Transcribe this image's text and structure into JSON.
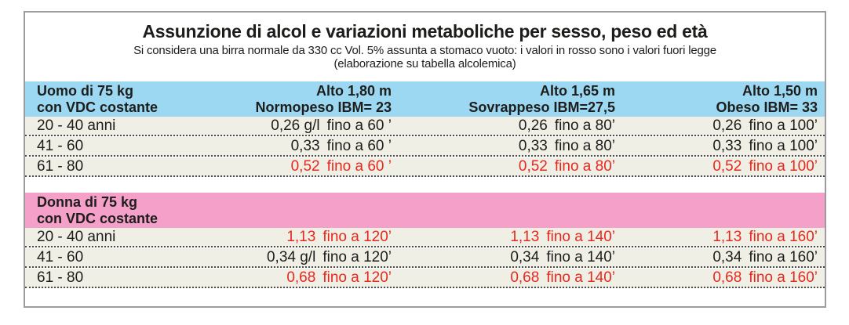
{
  "colors": {
    "blue_header": "#9dd8f3",
    "pink_header": "#f5a0c9",
    "row_bg": "#f0efe6",
    "red_text": "#e8281c",
    "border": "#9c9c9c",
    "text": "#1d1d1b"
  },
  "chart_data": {
    "type": "table",
    "title": "Assunzione di alcol e variazioni metaboliche per sesso, peso ed età",
    "subtitle": "Si considera una birra normale da 330 cc Vol. 5% assunta a stomaco vuoto: i valori in rosso sono i valori fuori legge",
    "note": "(elaborazione su tabella alcolemica)",
    "columns": [
      {
        "line1": "Alto 1,80 m",
        "line2": "Normopeso IBM= 23"
      },
      {
        "line1": "Alto 1,65 m",
        "line2": "Sovrappeso IBM=27,5"
      },
      {
        "line1": "Alto 1,50 m",
        "line2": "Obeso IBM= 33"
      }
    ],
    "sections": [
      {
        "label_line1": "Uomo di 75 kg",
        "label_line2": "con VDC costante",
        "theme": "blue",
        "rows": [
          {
            "age": "20 - 40 anni",
            "values": [
              {
                "num": "0,26 g/l",
                "time": "fino a 60 ’",
                "color": "black"
              },
              {
                "num": "0,26",
                "time": "fino a 80’",
                "color": "black"
              },
              {
                "num": "0,26",
                "time": "fino a 100’",
                "color": "black"
              }
            ]
          },
          {
            "age": "41 - 60",
            "values": [
              {
                "num": "0,33",
                "time": "fino a 60 ’",
                "color": "black"
              },
              {
                "num": "0,33",
                "time": "fino a 80’",
                "color": "black"
              },
              {
                "num": "0,33",
                "time": "fino a 100’",
                "color": "black"
              }
            ]
          },
          {
            "age": "61 - 80",
            "values": [
              {
                "num": "0,52",
                "time": "fino a 60 ’",
                "color": "red"
              },
              {
                "num": "0,52",
                "time": "fino a 80’",
                "color": "red"
              },
              {
                "num": "0,52",
                "time": "fino a 100’",
                "color": "red"
              }
            ]
          }
        ]
      },
      {
        "label_line1": "Donna di 75 kg",
        "label_line2": "con VDC costante",
        "theme": "pink",
        "rows": [
          {
            "age": "20 - 40 anni",
            "values": [
              {
                "num": "1,13",
                "time": "fino a 120’",
                "color": "red"
              },
              {
                "num": "1,13",
                "time": "fino a 140’",
                "color": "red"
              },
              {
                "num": "1,13",
                "time": "fino a 160’",
                "color": "red"
              }
            ]
          },
          {
            "age": "41 - 60",
            "values": [
              {
                "num": "0,34 g/l",
                "time": "fino a 120’",
                "color": "black"
              },
              {
                "num": "0,34",
                "time": "fino a 140’",
                "color": "black"
              },
              {
                "num": "0,34",
                "time": "fino a 160’",
                "color": "black"
              }
            ]
          },
          {
            "age": "61 - 80",
            "values": [
              {
                "num": "0,68",
                "time": "fino a 120’",
                "color": "red"
              },
              {
                "num": "0,68",
                "time": "fino a 140’",
                "color": "red"
              },
              {
                "num": "0,68",
                "time": "fino a 160’",
                "color": "red"
              }
            ]
          }
        ]
      }
    ]
  }
}
